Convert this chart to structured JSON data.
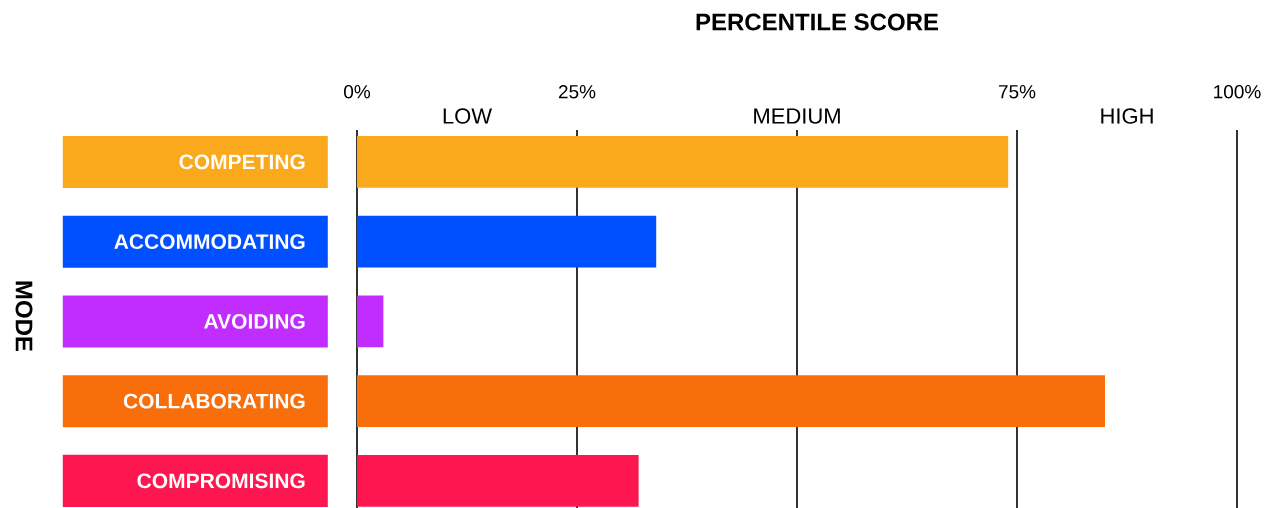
{
  "chart_data": {
    "type": "bar",
    "orientation": "horizontal",
    "title": "PERCENTILE SCORE",
    "ylabel": "MODE",
    "categories": [
      "COMPETING",
      "ACCOMMODATING",
      "AVOIDING",
      "COLLABORATING",
      "COMPROMISING"
    ],
    "values": [
      74,
      34,
      3,
      85,
      32
    ],
    "colors": [
      "#f9a91b",
      "#0050ff",
      "#c12cff",
      "#f76e0b",
      "#fe1650"
    ],
    "xlim": [
      0,
      100
    ],
    "xticks": [
      {
        "value": 0,
        "label": "0%"
      },
      {
        "value": 25,
        "label": "25%"
      },
      {
        "value": 50,
        "label": null
      },
      {
        "value": 75,
        "label": "75%"
      },
      {
        "value": 100,
        "label": "100%"
      }
    ],
    "grid": "x",
    "annotations": [
      "LOW",
      "MEDIUM",
      "HIGH"
    ]
  }
}
